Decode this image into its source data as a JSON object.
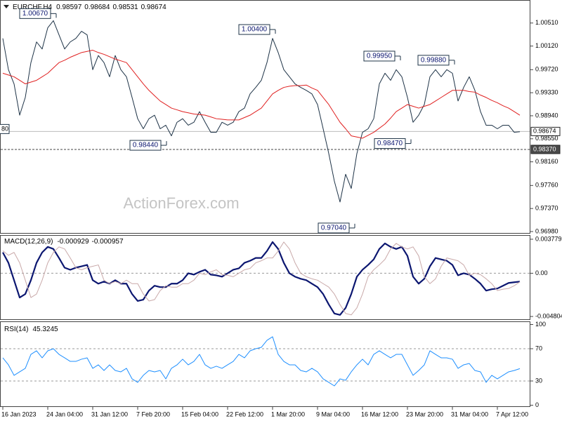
{
  "chart_data": [
    {
      "type": "line",
      "title": "EURCHF,H4",
      "header_values": [
        0.98597,
        0.98684,
        0.98531,
        0.98674
      ],
      "categories": [
        "16 Jan 2023",
        null,
        null,
        null,
        null,
        null,
        null,
        null,
        "24 Jan 04:00",
        null,
        null,
        null,
        null,
        null,
        null,
        null,
        "31 Jan 12:00",
        null,
        null,
        null,
        null,
        null,
        null,
        null,
        "7 Feb 20:00",
        null,
        null,
        null,
        null,
        null,
        null,
        null,
        "15 Feb 04:00",
        null,
        null,
        null,
        null,
        null,
        null,
        null,
        "22 Feb 12:00",
        null,
        null,
        null,
        null,
        null,
        null,
        null,
        "1 Mar 20:00",
        null,
        null,
        null,
        null,
        null,
        null,
        null,
        "9 Mar 04:00",
        null,
        null,
        null,
        null,
        null,
        null,
        null,
        "16 Mar 12:00",
        null,
        null,
        null,
        null,
        null,
        null,
        null,
        "23 Mar 20:00",
        null,
        null,
        null,
        null,
        null,
        null,
        null,
        "31 Mar 04:00",
        null,
        null,
        null,
        null,
        null,
        null,
        null,
        "7 Apr 12:00",
        null,
        null,
        null,
        null
      ],
      "series": [
        {
          "color": "#1e3347",
          "values": [
            1.0025,
            0.9972,
            0.9948,
            0.9895,
            0.9925,
            0.9984,
            1.0019,
            1.0007,
            1.0043,
            1.0055,
            1.0031,
            1.0007,
            1.0019,
            1.0025,
            1.0037,
            1.0031,
            0.9972,
            0.9996,
            0.9984,
            0.996,
            0.9996,
            0.9972,
            0.996,
            0.9925,
            0.9889,
            0.9872,
            0.9889,
            0.9895,
            0.9872,
            0.9878,
            0.986,
            0.9883,
            0.9889,
            0.9878,
            0.9883,
            0.9901,
            0.9883,
            0.9866,
            0.9866,
            0.9883,
            0.9878,
            0.9883,
            0.9901,
            0.9907,
            0.9931,
            0.9942,
            0.9954,
            0.9984,
            1.0025,
            1.0001,
            0.9972,
            0.996,
            0.9948,
            0.9942,
            0.9937,
            0.9931,
            0.9913,
            0.9872,
            0.983,
            0.9783,
            0.9748,
            0.9795,
            0.9771,
            0.983,
            0.9866,
            0.9872,
            0.9889,
            0.9948,
            0.9966,
            0.9954,
            0.9972,
            0.996,
            0.9925,
            0.9883,
            0.9895,
            0.9913,
            0.996,
            0.9972,
            0.996,
            0.9972,
            0.9966,
            0.9919,
            0.9942,
            0.996,
            0.9937,
            0.9901,
            0.9878,
            0.9878,
            0.9872,
            0.9878,
            0.9878,
            0.9866,
            0.9867
          ]
        },
        {
          "color": "#e02020",
          "values": [
            0.9966,
            0.9963,
            0.996,
            0.9954,
            0.9948,
            0.9951,
            0.9954,
            0.996,
            0.9966,
            0.9975,
            0.9984,
            0.9988,
            0.9993,
            0.9997,
            1.0001,
            1.0003,
            1.0005,
            1.0001,
            0.9998,
            0.9994,
            0.999,
            0.9987,
            0.9984,
            0.9972,
            0.996,
            0.9948,
            0.9937,
            0.9928,
            0.9919,
            0.9913,
            0.9907,
            0.9904,
            0.9901,
            0.9899,
            0.9897,
            0.9896,
            0.9895,
            0.9892,
            0.9889,
            0.9888,
            0.9887,
            0.9887,
            0.9887,
            0.9891,
            0.9895,
            0.9901,
            0.9907,
            0.9919,
            0.9931,
            0.9937,
            0.9942,
            0.9944,
            0.9945,
            0.9945,
            0.9946,
            0.9941,
            0.9937,
            0.9925,
            0.9913,
            0.9898,
            0.9883,
            0.9872,
            0.986,
            0.9858,
            0.9856,
            0.9861,
            0.9866,
            0.9873,
            0.988,
            0.989,
            0.9901,
            0.9907,
            0.9913,
            0.991,
            0.9907,
            0.991,
            0.9913,
            0.9919,
            0.9925,
            0.9931,
            0.9937,
            0.9937,
            0.9937,
            0.9935,
            0.9934,
            0.9929,
            0.9925,
            0.992,
            0.9916,
            0.9911,
            0.9907,
            0.9901,
            0.9895
          ]
        }
      ],
      "ylim": [
        0.96956,
        1.00876
      ],
      "yticks": [
        {
          "value": 1.0051,
          "label": "1.00510"
        },
        {
          "value": 1.0012,
          "label": "1.00120"
        },
        {
          "value": 0.9972,
          "label": "0.99720"
        },
        {
          "value": 0.9933,
          "label": "0.99330"
        },
        {
          "value": 0.9894,
          "label": "0.98940"
        },
        {
          "value": 0.9855,
          "label": "0.98550"
        },
        {
          "value": 0.9816,
          "label": "0.98160"
        },
        {
          "value": 0.9776,
          "label": "0.97760"
        },
        {
          "value": 0.9737,
          "label": "0.97370"
        },
        {
          "value": 0.9698,
          "label": "0.96980"
        }
      ],
      "annotations": [
        {
          "value": 1.0067,
          "label": "1.00670"
        },
        {
          "value": 1.004,
          "label": "1.00400"
        },
        {
          "value": 0.9995,
          "label": "0.99950"
        },
        {
          "value": 0.9988,
          "label": "0.99880"
        },
        {
          "value": 0.9844,
          "label": "0.98440"
        },
        {
          "value": 0.9847,
          "label": "0.98470"
        },
        {
          "value": 0.9704,
          "label": "0.97040"
        }
      ],
      "price_lines": [
        {
          "value": 0.98674,
          "label": "0.98674"
        },
        {
          "value": 0.9837,
          "label": "0.98370"
        }
      ],
      "clipped_label": "80",
      "watermark": "ActionForex.com"
    },
    {
      "type": "line",
      "title": "MACD(12,26,9)",
      "header_values": [
        -0.000929,
        -0.000957
      ],
      "series": [
        {
          "color": "#0b1670",
          "values": [
            0.002313,
            0.001157,
            -0.000771,
            -0.002699,
            -0.002313,
            -0.000771,
            0.001157,
            0.002313,
            0.00293,
            0.002699,
            0.001696,
            0.000617,
            0.000386,
            0.000617,
            0.000771,
            0.000925,
            -0.000771,
            -0.001157,
            -0.000925,
            -0.001157,
            -0.000771,
            -0.001157,
            -0.001157,
            -0.002313,
            -0.003084,
            -0.00293,
            -0.001928,
            -0.001388,
            -0.001542,
            -0.001542,
            -0.001157,
            -0.001157,
            -0.000771,
            0,
            -0.000154,
            0.000154,
            0.000386,
            -0.000154,
            -0.000231,
            -0.000386,
            0,
            0.000386,
            0.00054,
            0.001157,
            0.001388,
            0.001696,
            0.001696,
            0.002467,
            0.00347,
            0.002699,
            0.001157,
            0,
            -0.000386,
            -0.000617,
            -0.000771,
            -0.001157,
            -0.001542,
            -0.002313,
            -0.00347,
            -0.004472,
            -0.004626,
            -0.003855,
            -0.002313,
            -0.000386,
            0.000386,
            0.000925,
            0.001542,
            0.002699,
            0.003315,
            0.00293,
            0.002699,
            0.00293,
            0.001928,
            -0.000386,
            -0.001157,
            -0.000617,
            0.000771,
            0.001696,
            0.001542,
            0.001388,
            0.000925,
            -0.000231,
            0,
            -0.000154,
            -0.000617,
            -0.001157,
            -0.001928,
            -0.001773,
            -0.001696,
            -0.001388,
            -0.001079,
            -0.001002,
            -0.000929
          ]
        },
        {
          "color": "#c9a9a9",
          "values": [
            0.0025,
            0.002,
            0.002313,
            0.001157,
            -0.000771,
            -0.002699,
            -0.002313,
            -0.000771,
            0.001157,
            0.002313,
            0.00293,
            0.002699,
            0.001696,
            0.000617,
            0.000386,
            0.000617,
            0.000771,
            0.000925,
            -0.000771,
            -0.001157,
            -0.000925,
            -0.001157,
            -0.000771,
            -0.001157,
            -0.001157,
            -0.002313,
            -0.003084,
            -0.00293,
            -0.001928,
            -0.001388,
            -0.001542,
            -0.001542,
            -0.001157,
            -0.001157,
            -0.000771,
            0,
            -0.000154,
            0.000154,
            0.000386,
            -0.000154,
            -0.000231,
            -0.000386,
            0,
            0.000386,
            0.00054,
            0.001157,
            0.001388,
            0.001696,
            0.001696,
            0.002467,
            0.00347,
            0.002699,
            0.001157,
            0,
            -0.000386,
            -0.000617,
            -0.000771,
            -0.001157,
            -0.001542,
            -0.002313,
            -0.00347,
            -0.004472,
            -0.004626,
            -0.003855,
            -0.002313,
            -0.000386,
            0.000386,
            0.000925,
            0.001542,
            0.002699,
            0.003315,
            0.00293,
            0.002699,
            0.00293,
            0.001928,
            -0.000386,
            -0.001157,
            -0.000617,
            0.000771,
            0.001696,
            0.001542,
            0.001388,
            0.000925,
            -0.000231,
            0,
            -0.000154,
            -0.000617,
            -0.001157,
            -0.001928,
            -0.001773,
            -0.001696,
            -0.001388,
            -0.000957
          ]
        }
      ],
      "ylim": [
        -0.005112,
        0.004242
      ],
      "yticks": [
        0.003779,
        {
          "value": 0,
          "label": "0.00"
        },
        -0.004804
      ],
      "levels": [
        0
      ]
    },
    {
      "type": "line",
      "title": "RSI(14)",
      "header_values": [
        45.3245
      ],
      "series": [
        {
          "color": "#1e8fff",
          "values": [
            58.7,
            50,
            37,
            41.3,
            45.7,
            63,
            67.4,
            58.7,
            67.4,
            70,
            63,
            58.7,
            54.3,
            54.3,
            57,
            58.7,
            45.7,
            50,
            43,
            50,
            43,
            41.3,
            45.7,
            32.6,
            28.3,
            37,
            43,
            41.3,
            43,
            32.6,
            45.7,
            50,
            57,
            50,
            54.3,
            63,
            50,
            45.7,
            48.3,
            45.7,
            50,
            54.3,
            63,
            58.7,
            67.4,
            70,
            71.7,
            80.4,
            84.8,
            63,
            54.3,
            50,
            50,
            43,
            41.3,
            45.7,
            41.3,
            32.6,
            28.3,
            23.9,
            32.6,
            30.9,
            41.3,
            50,
            57,
            50,
            63,
            67.4,
            63,
            58.7,
            63,
            63,
            50,
            37,
            43,
            50,
            67.4,
            63,
            58.7,
            58.7,
            57,
            45.7,
            50,
            51.7,
            43,
            41.3,
            28.3,
            37,
            32.6,
            37,
            41.3,
            43,
            45.3
          ]
        }
      ],
      "ylim": [
        -2.2,
        103.9
      ],
      "yticks": [
        100,
        70,
        30,
        0
      ],
      "levels": [
        70,
        30
      ]
    }
  ]
}
